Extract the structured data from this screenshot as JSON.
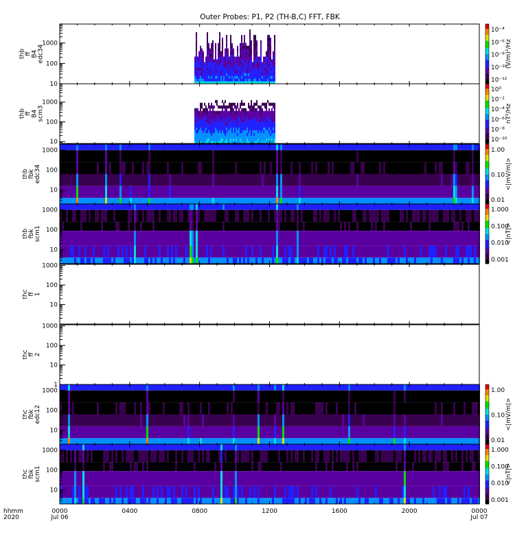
{
  "chart_data": {
    "type": "heatmap",
    "title": "Outer Probes: P1, P2 (TH-B,C) FFT, FBK",
    "x_axis": {
      "label_lines": [
        "hhmm",
        "2020"
      ],
      "range_hours": [
        0,
        24
      ],
      "ticks": [
        {
          "hour": 0,
          "lines": [
            "0000",
            "Jul 06"
          ]
        },
        {
          "hour": 4,
          "lines": [
            "0400"
          ]
        },
        {
          "hour": 8,
          "lines": [
            "0800"
          ]
        },
        {
          "hour": 12,
          "lines": [
            "1200"
          ]
        },
        {
          "hour": 16,
          "lines": [
            "1600"
          ]
        },
        {
          "hour": 20,
          "lines": [
            "2000"
          ]
        },
        {
          "hour": 24,
          "lines": [
            "0000",
            "Jul 07"
          ]
        }
      ]
    },
    "panels": [
      {
        "id": "thb-ff-b4-edc34",
        "label_lines": [
          "thb",
          "ff",
          "B4",
          "edc34"
        ],
        "kind": "fft_e",
        "ylog": [
          10,
          8500
        ],
        "yticks": [
          "10",
          "100",
          "1000"
        ],
        "data_hours": [
          7.7,
          12.3
        ]
      },
      {
        "id": "thb-ff-b4-scm3",
        "label_lines": [
          "thb",
          "ff",
          "B4",
          "scm3"
        ],
        "kind": "fft_b",
        "ylog": [
          8,
          8500
        ],
        "yticks": [
          "10",
          "100",
          "1000"
        ],
        "data_hours": [
          7.7,
          12.3
        ]
      },
      {
        "id": "thb-fbk-edc34",
        "label_lines": [
          "thb",
          "fbk",
          "edc34"
        ],
        "kind": "fbk_e",
        "ylog": [
          2,
          2000
        ],
        "yticks": [
          "10",
          "100",
          "1000"
        ],
        "seed": 11
      },
      {
        "id": "thb-fbk-scm1",
        "label_lines": [
          "thb",
          "fbk",
          "scm1"
        ],
        "kind": "fbk_b",
        "ylog": [
          2,
          2000
        ],
        "yticks": [
          "10",
          "100",
          "1000"
        ],
        "seed": 23
      },
      {
        "id": "thc-ff-1",
        "label_lines": [
          "thc",
          "ff",
          "1"
        ],
        "kind": "empty",
        "ylog": [
          1,
          1150
        ],
        "yticks": [
          "10",
          "100",
          "1000"
        ]
      },
      {
        "id": "thc-ff-2",
        "label_lines": [
          "thc",
          "ff",
          "2"
        ],
        "kind": "empty",
        "ylog": [
          1,
          1150
        ],
        "yticks": [
          "1",
          "10",
          "100",
          "1000"
        ]
      },
      {
        "id": "thc-fbk-edc12",
        "label_lines": [
          "thc",
          "fbk",
          "edc12"
        ],
        "kind": "fbk_e",
        "ylog": [
          2,
          2000
        ],
        "yticks": [
          "10",
          "100",
          "1000"
        ],
        "seed": 37
      },
      {
        "id": "thc-fbk-scm1",
        "label_lines": [
          "thc",
          "fbk",
          "scm1"
        ],
        "kind": "fbk_b",
        "ylog": [
          2,
          2000
        ],
        "yticks": [
          "10",
          "100",
          "1000"
        ],
        "seed": 51
      }
    ],
    "colorbars": [
      {
        "panel": 0,
        "unit": "(V/m)²/Hz",
        "ticks": [
          "10⁻¹²",
          "10⁻¹⁰",
          "10⁻⁸",
          "10⁻⁶",
          "10⁻⁴"
        ]
      },
      {
        "panel": 1,
        "unit": "nT²/Hz",
        "ticks": [
          "10⁻¹⁰",
          "10⁻⁸",
          "10⁻⁶",
          "10⁻⁴",
          "10⁻²",
          "10⁰"
        ]
      },
      {
        "panel": 2,
        "unit": "<|mV/m|>",
        "ticks": [
          "0.01",
          "0.10",
          "1.00"
        ]
      },
      {
        "panel": 3,
        "unit": "<|nT|>",
        "ticks": [
          "0.001",
          "0.010",
          "0.100",
          "1.000"
        ]
      },
      {
        "panel": 6,
        "unit": "<|mV/m|>",
        "ticks": [
          "0.01",
          "0.10",
          "1.00"
        ]
      },
      {
        "panel": 7,
        "unit": "<|nT|>",
        "ticks": [
          "0.001",
          "0.010",
          "0.100",
          "1.000"
        ]
      }
    ],
    "colormap": [
      "#000000",
      "#3a0050",
      "#5a00a0",
      "#1f1fff",
      "#0090ff",
      "#00e0e0",
      "#00e000",
      "#e0e000",
      "#ff8000",
      "#e00000"
    ]
  }
}
